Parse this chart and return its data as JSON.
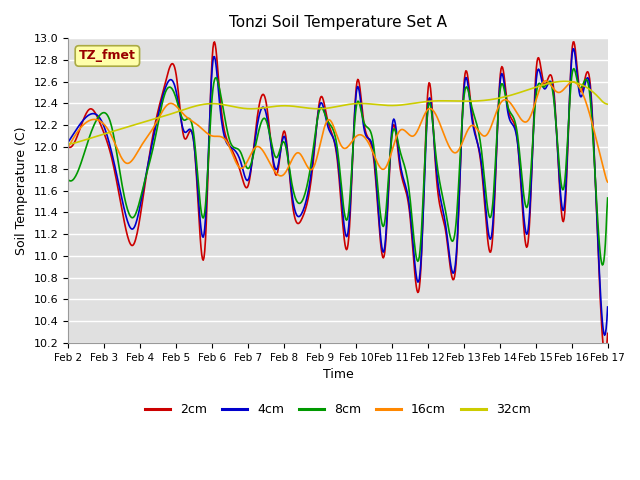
{
  "title": "Tonzi Soil Temperature Set A",
  "xlabel": "Time",
  "ylabel": "Soil Temperature (C)",
  "ylim": [
    10.2,
    13.0
  ],
  "legend_labels": [
    "2cm",
    "4cm",
    "8cm",
    "16cm",
    "32cm"
  ],
  "legend_colors": [
    "#cc0000",
    "#0000cc",
    "#009900",
    "#ff8800",
    "#cccc00"
  ],
  "annotation_text": "TZ_fmet",
  "annotation_color": "#990000",
  "annotation_bg": "#ffffaa",
  "plot_bg": "#e0e0e0",
  "x_tick_labels": [
    "Feb 2",
    "Feb 3",
    "Feb 4",
    "Feb 5",
    "Feb 6",
    "Feb 7",
    "Feb 8",
    "Feb 9",
    "Feb 10",
    "Feb 11",
    "Feb 12",
    "Feb 13",
    "Feb 14",
    "Feb 15",
    "Feb 16",
    "Feb 17"
  ],
  "n_days": 15
}
